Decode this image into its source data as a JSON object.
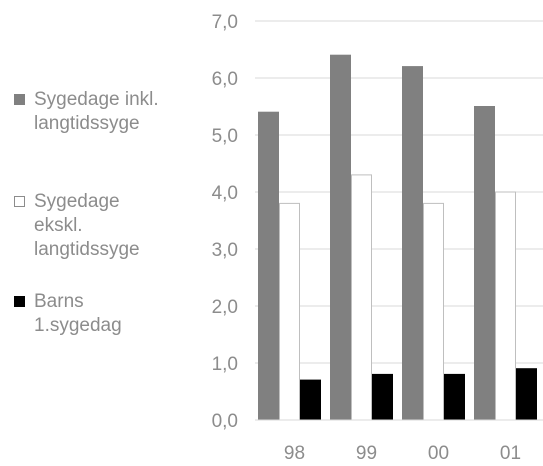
{
  "chart_data": {
    "type": "bar",
    "categories": [
      "98",
      "99",
      "00",
      "01"
    ],
    "series": [
      {
        "name": "Sygedage inkl. langtidssyge",
        "values": [
          5.4,
          6.4,
          6.2,
          5.5
        ],
        "fill": "#808080",
        "stroke": "#808080"
      },
      {
        "name": "Sygedage ekskl. langtidssyge",
        "values": [
          3.8,
          4.3,
          3.8,
          4.0
        ],
        "fill": "#ffffff",
        "stroke": "#bfbfbf"
      },
      {
        "name": "Barns 1.sygedag",
        "values": [
          0.7,
          0.8,
          0.8,
          0.9
        ],
        "fill": "#000000",
        "stroke": "#000000"
      }
    ],
    "y_ticks": [
      "0,0",
      "1,0",
      "2,0",
      "3,0",
      "4,0",
      "5,0",
      "6,0",
      "7,0"
    ],
    "ylim": [
      0,
      7
    ],
    "grid": true,
    "legend_position": "left",
    "colors": {
      "text": "#8c8c8c",
      "grid": "#d9d9d9"
    }
  },
  "legend": {
    "items": [
      {
        "label": "Sygedage inkl.\nlangtidssyge"
      },
      {
        "label": "Sygedage\nekskl.\nlangtidssyge"
      },
      {
        "label": "Barns\n1.sygedag"
      }
    ]
  }
}
